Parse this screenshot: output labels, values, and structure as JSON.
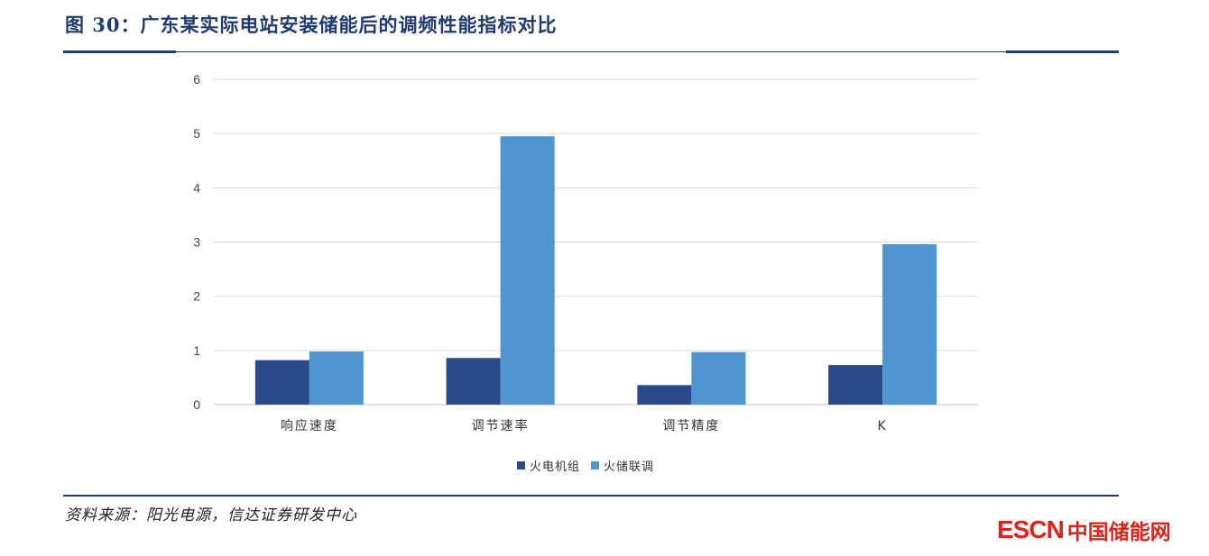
{
  "header": {
    "title": "图 30：广东某实际电站安装储能后的调频性能指标对比"
  },
  "footer": {
    "source": "资料来源：阳光电源，信达证券研发中心"
  },
  "brand": {
    "escn": "ESCN",
    "cn": "中国储能网",
    "color": "#d9251c"
  },
  "chart_data": {
    "type": "bar",
    "categories": [
      "响应速度",
      "调节速率",
      "调节精度",
      "K"
    ],
    "series": [
      {
        "name": "火电机组",
        "color": "#2b4a8b",
        "values": [
          0.82,
          0.86,
          0.36,
          0.73
        ]
      },
      {
        "name": "火储联调",
        "color": "#4f95d0",
        "values": [
          0.98,
          4.95,
          0.97,
          2.96
        ]
      }
    ],
    "ylim": [
      0,
      6
    ],
    "yticks": [
      0,
      1,
      2,
      3,
      4,
      5,
      6
    ],
    "grid": true,
    "legend": "bottom-center"
  }
}
